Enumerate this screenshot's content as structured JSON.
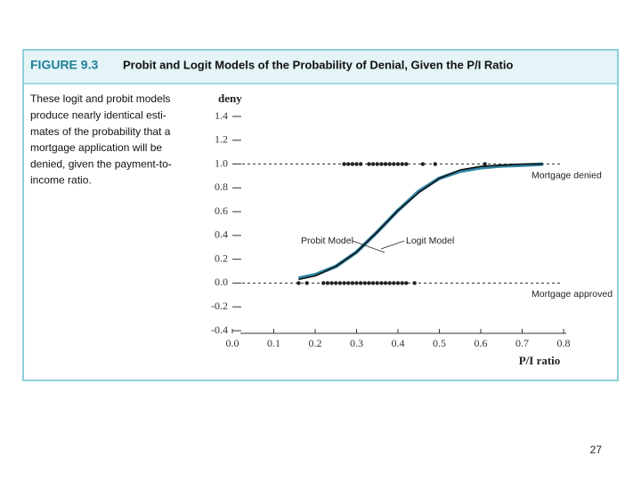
{
  "figure_label": "FIGURE 9.3",
  "caption_lines": [
    "These logit and probit models",
    "produce nearly identical esti-",
    "mates of the probability that a",
    "mortgage application will be",
    "denied, given the payment-to-",
    "income ratio."
  ],
  "page_number": "27",
  "chart_data": {
    "type": "scatter",
    "title": "Probit and Logit Models of the Probability of Denial, Given the P/I Ratio",
    "xlabel": "P/I ratio",
    "ylabel": "deny",
    "xlim": [
      0,
      0.8
    ],
    "ylim": [
      -0.4,
      1.4
    ],
    "xticks": [
      {
        "value": 0,
        "label": "0.0"
      },
      0.1,
      0.2,
      0.3,
      0.4,
      0.5,
      0.6,
      0.7,
      0.8
    ],
    "yticks": [
      {
        "value": -0.4,
        "label": "-0.4"
      },
      -0.2,
      {
        "value": 0,
        "label": "0.0"
      },
      0.2,
      0.4,
      0.6,
      0.8,
      {
        "value": 1,
        "label": "1.0"
      },
      1.2,
      1.4
    ],
    "hlines": [
      {
        "value": 1,
        "label": "Mortgage denied"
      },
      {
        "value": 0,
        "label": "Mortgage approved"
      }
    ],
    "points": [
      {
        "color": "#222222",
        "x": [
          0.27,
          0.28,
          0.29,
          0.3,
          0.31,
          0.33,
          0.34,
          0.35,
          0.36,
          0.37,
          0.38,
          0.39,
          0.4,
          0.41,
          0.42,
          0.46,
          0.49,
          0.61
        ],
        "values": [
          1,
          1,
          1,
          1,
          1,
          1,
          1,
          1,
          1,
          1,
          1,
          1,
          1,
          1,
          1,
          1,
          1,
          1
        ]
      },
      {
        "color": "#222222",
        "x": [
          0.16,
          0.18,
          0.22,
          0.23,
          0.24,
          0.25,
          0.26,
          0.27,
          0.28,
          0.29,
          0.3,
          0.31,
          0.32,
          0.33,
          0.34,
          0.35,
          0.36,
          0.37,
          0.38,
          0.39,
          0.4,
          0.41,
          0.42,
          0.44
        ],
        "values": [
          0,
          0,
          0,
          0,
          0,
          0,
          0,
          0,
          0,
          0,
          0,
          0,
          0,
          0,
          0,
          0,
          0,
          0,
          0,
          0,
          0,
          0,
          0,
          0
        ]
      }
    ],
    "curves": [
      {
        "name": "Logit Model",
        "color": "#2f86a6",
        "x": [
          0.16,
          0.2,
          0.25,
          0.3,
          0.35,
          0.4,
          0.45,
          0.5,
          0.55,
          0.6,
          0.65,
          0.7,
          0.75
        ],
        "values": [
          0.04,
          0.07,
          0.14,
          0.26,
          0.43,
          0.61,
          0.77,
          0.88,
          0.94,
          0.97,
          0.985,
          0.99,
          1.0
        ]
      },
      {
        "name": "Probit Model",
        "color": "#111111",
        "x": [
          0.16,
          0.2,
          0.25,
          0.3,
          0.35,
          0.4,
          0.45,
          0.5,
          0.55,
          0.6,
          0.65,
          0.7,
          0.75
        ],
        "values": [
          0.03,
          0.06,
          0.14,
          0.26,
          0.43,
          0.61,
          0.76,
          0.88,
          0.95,
          0.98,
          0.99,
          1.0,
          1.0
        ]
      }
    ]
  }
}
